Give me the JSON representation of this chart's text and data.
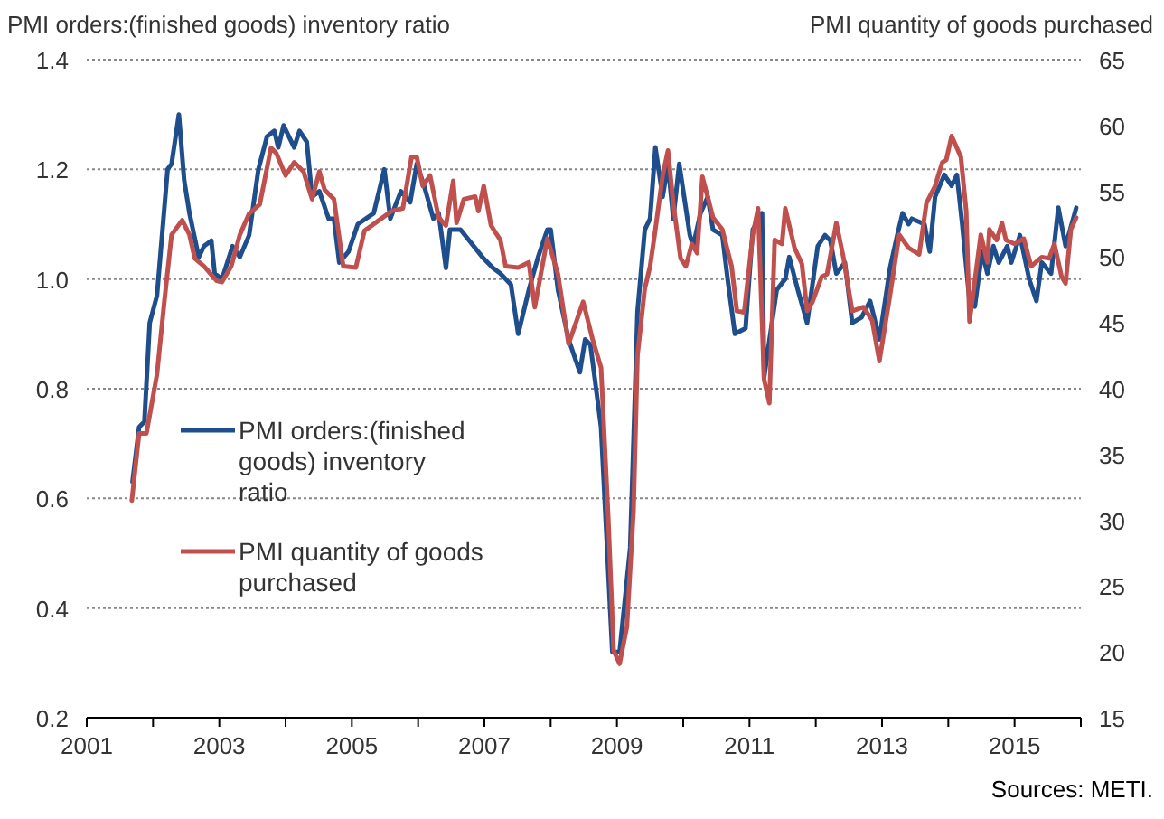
{
  "chart_data": {
    "type": "line",
    "ylabel": "PMI orders:(finished goods) inventory ratio",
    "y2label": "PMI quantity of goods purchased",
    "annotations": [
      "Sources: METI."
    ],
    "xlim": [
      2001,
      2016
    ],
    "xticks": [
      2001,
      {
        "value": 2002,
        "label": null
      },
      2003,
      {
        "value": 2004,
        "label": null
      },
      2005,
      {
        "value": 2006,
        "label": null
      },
      2007,
      {
        "value": 2008,
        "label": null
      },
      2009,
      {
        "value": 2010,
        "label": null
      },
      2011,
      {
        "value": 2012,
        "label": null
      },
      2013,
      {
        "value": 2014,
        "label": null
      },
      2015,
      {
        "value": 2016,
        "label": null
      }
    ],
    "ylim": [
      0.2,
      1.4
    ],
    "yticks": [
      {
        "value": 0.2,
        "label": "0.2"
      },
      {
        "value": 0.4,
        "label": "0.4"
      },
      {
        "value": 0.6,
        "label": "0.6"
      },
      {
        "value": 0.8,
        "label": "0.8"
      },
      {
        "value": 1,
        "label": "1.0"
      },
      {
        "value": 1.2,
        "label": "1.2"
      },
      {
        "value": 1.4,
        "label": "1.4"
      }
    ],
    "y2lim": [
      15,
      65
    ],
    "y2ticks": [
      15,
      20,
      25,
      30,
      35,
      40,
      45,
      50,
      55,
      60,
      65
    ],
    "grid": "y",
    "legend": "left",
    "line_style": "solid",
    "marker": "none",
    "series": [
      {
        "name": "PMI orders:(finished goods) inventory ratio",
        "color": "#1f4e8c",
        "x": [
          2001.69,
          2001.79,
          2001.87,
          2001.95,
          2002.06,
          2002.22,
          2002.28,
          2002.39,
          2002.47,
          2002.55,
          2002.69,
          2002.77,
          2002.88,
          2002.93,
          2003.04,
          2003.2,
          2003.31,
          2003.45,
          2003.59,
          2003.72,
          2003.83,
          2003.89,
          2003.97,
          2004.13,
          2004.21,
          2004.32,
          2004.4,
          2004.51,
          2004.65,
          2004.73,
          2004.81,
          2004.95,
          2005.09,
          2005.33,
          2005.49,
          2005.58,
          2005.74,
          2005.88,
          2005.98,
          2006.09,
          2006.23,
          2006.31,
          2006.42,
          2006.48,
          2006.64,
          2006.97,
          2007.13,
          2007.24,
          2007.4,
          2007.51,
          2007.67,
          2007.81,
          2007.95,
          2008,
          2008.11,
          2008.27,
          2008.44,
          2008.52,
          2008.6,
          2008.76,
          2008.93,
          2009.04,
          2009.2,
          2009.31,
          2009.42,
          2009.5,
          2009.58,
          2009.69,
          2009.77,
          2009.85,
          2009.94,
          2010.1,
          2010.15,
          2010.26,
          2010.37,
          2010.45,
          2010.59,
          2010.67,
          2010.78,
          2010.94,
          2011.05,
          2011.19,
          2011.22,
          2011.41,
          2011.54,
          2011.6,
          2011.73,
          2011.87,
          2012.03,
          2012.14,
          2012.22,
          2012.31,
          2012.44,
          2012.55,
          2012.69,
          2012.82,
          2012.96,
          2013.12,
          2013.23,
          2013.31,
          2013.4,
          2013.45,
          2013.64,
          2013.72,
          2013.8,
          2013.94,
          2014.05,
          2014.13,
          2014.21,
          2014.32,
          2014.4,
          2014.51,
          2014.59,
          2014.68,
          2014.76,
          2014.89,
          2014.95,
          2015.08,
          2015.22,
          2015.33,
          2015.41,
          2015.55,
          2015.66,
          2015.77,
          2015.93
        ],
        "values": [
          0.63,
          0.73,
          0.74,
          0.92,
          0.97,
          1.2,
          1.21,
          1.3,
          1.18,
          1.12,
          1.04,
          1.06,
          1.07,
          1.01,
          1,
          1.06,
          1.04,
          1.08,
          1.2,
          1.26,
          1.27,
          1.24,
          1.28,
          1.24,
          1.27,
          1.25,
          1.15,
          1.16,
          1.11,
          1.11,
          1.03,
          1.05,
          1.1,
          1.12,
          1.2,
          1.11,
          1.16,
          1.14,
          1.21,
          1.17,
          1.11,
          1.12,
          1.02,
          1.09,
          1.09,
          1.04,
          1.02,
          1.01,
          0.99,
          0.9,
          0.98,
          1.04,
          1.09,
          1.09,
          0.98,
          0.89,
          0.83,
          0.89,
          0.88,
          0.73,
          0.32,
          0.32,
          0.51,
          0.94,
          1.09,
          1.11,
          1.24,
          1.15,
          1.21,
          1.11,
          1.21,
          1.08,
          1.06,
          1.12,
          1.15,
          1.09,
          1.08,
          1,
          0.9,
          0.91,
          1.09,
          1.12,
          0.82,
          0.98,
          1,
          1.04,
          0.98,
          0.92,
          1.06,
          1.08,
          1.07,
          1.01,
          1.03,
          0.92,
          0.93,
          0.96,
          0.89,
          1.02,
          1.08,
          1.12,
          1.1,
          1.11,
          1.1,
          1.05,
          1.15,
          1.19,
          1.17,
          1.19,
          1.1,
          0.96,
          0.95,
          1.05,
          1.01,
          1.06,
          1.03,
          1.06,
          1.03,
          1.08,
          1,
          0.96,
          1.03,
          1.01,
          1.13,
          1.06,
          1.13
        ]
      },
      {
        "name": "PMI quantity of goods purchased",
        "color": "#c0504d",
        "axis": "y2",
        "x": [
          2001.68,
          2001.79,
          2001.9,
          2002.06,
          2002.17,
          2002.28,
          2002.44,
          2002.55,
          2002.63,
          2002.77,
          2002.96,
          2003.04,
          2003.18,
          2003.31,
          2003.45,
          2003.61,
          2003.78,
          2003.86,
          2004,
          2004.13,
          2004.27,
          2004.4,
          2004.51,
          2004.59,
          2004.73,
          2004.87,
          2005.06,
          2005.19,
          2005.41,
          2005.6,
          2005.77,
          2005.9,
          2005.98,
          2006.07,
          2006.18,
          2006.31,
          2006.42,
          2006.53,
          2006.58,
          2006.69,
          2006.86,
          2006.91,
          2006.99,
          2007.1,
          2007.24,
          2007.32,
          2007.51,
          2007.67,
          2007.76,
          2007.95,
          2008.11,
          2008.27,
          2008.49,
          2008.63,
          2008.76,
          2008.87,
          2008.95,
          2009.04,
          2009.15,
          2009.25,
          2009.31,
          2009.42,
          2009.5,
          2009.58,
          2009.69,
          2009.77,
          2009.85,
          2009.96,
          2010.04,
          2010.13,
          2010.21,
          2010.29,
          2010.45,
          2010.59,
          2010.73,
          2010.81,
          2010.92,
          2011.05,
          2011.13,
          2011.22,
          2011.3,
          2011.38,
          2011.49,
          2011.54,
          2011.68,
          2011.79,
          2011.87,
          2011.95,
          2012.09,
          2012.17,
          2012.31,
          2012.42,
          2012.55,
          2012.72,
          2012.85,
          2012.96,
          2013.12,
          2013.26,
          2013.4,
          2013.56,
          2013.67,
          2013.8,
          2013.91,
          2013.97,
          2014.05,
          2014.19,
          2014.27,
          2014.32,
          2014.49,
          2014.59,
          2014.62,
          2014.73,
          2014.81,
          2014.87,
          2015,
          2015.14,
          2015.25,
          2015.41,
          2015.52,
          2015.6,
          2015.71,
          2015.77,
          2015.85,
          2015.93
        ],
        "values": [
          31.5,
          36.6,
          36.6,
          41.1,
          46.6,
          51.7,
          52.8,
          51.7,
          49.9,
          49.3,
          48.2,
          48.1,
          49.3,
          51.7,
          53.3,
          54,
          58.3,
          57.9,
          56.2,
          57.2,
          56.5,
          54.4,
          56.5,
          55.1,
          54.4,
          49.3,
          49.2,
          52,
          52.8,
          53.5,
          53.7,
          57.6,
          57.6,
          55.4,
          56.2,
          53,
          52.4,
          55.8,
          52.6,
          54.4,
          54.6,
          53.5,
          55.4,
          52.4,
          51.3,
          49.3,
          49.2,
          49.6,
          46.2,
          51.4,
          48.7,
          43.4,
          46.6,
          43.8,
          41.6,
          30.1,
          20.1,
          19.1,
          21.9,
          30.7,
          42.5,
          47.6,
          49.3,
          52.1,
          56.2,
          58.1,
          54.1,
          49.9,
          49.3,
          51,
          50.3,
          56.1,
          53,
          52.1,
          49.3,
          45.9,
          45.8,
          51.7,
          53.7,
          40.7,
          38.9,
          51.3,
          51,
          53.7,
          50.7,
          49.5,
          45.9,
          46.6,
          48.5,
          48.7,
          52.6,
          49.9,
          45.9,
          46.2,
          45.2,
          42.1,
          47.1,
          51.7,
          50.7,
          50.2,
          54.1,
          55.4,
          57.2,
          57.4,
          59.2,
          57.6,
          53.5,
          45.1,
          51.7,
          49.6,
          52.1,
          51.3,
          52.6,
          51.3,
          51,
          51.4,
          49.3,
          50,
          49.9,
          51,
          48.5,
          48,
          52.1,
          53
        ]
      }
    ]
  }
}
